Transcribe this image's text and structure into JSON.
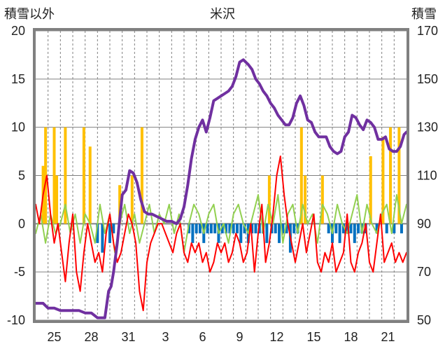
{
  "chart_data": {
    "type": "line",
    "title": "米沢",
    "left_axis_label": "積雪以外",
    "right_axis_label": "積雪",
    "left_ylim": [
      -10,
      20
    ],
    "left_yticks": [
      "20",
      "15",
      "10",
      "5",
      "0",
      "-5",
      "-10"
    ],
    "right_ylim": [
      50,
      170
    ],
    "right_yticks": [
      "170",
      "150",
      "130",
      "110",
      "90",
      "70",
      "50"
    ],
    "x_tick_labels": [
      "25",
      "28",
      "31",
      "3",
      "6",
      "9",
      "12",
      "15",
      "18",
      "21"
    ],
    "x_range_days": 30,
    "x_tick_offsets_days": [
      1.5,
      4.5,
      7.5,
      10.5,
      13.5,
      16.5,
      19.5,
      22.5,
      25.5,
      28.5
    ],
    "grid": {
      "horizontal": true,
      "vertical_dashed_daily": true
    },
    "colors": {
      "snow_depth": "#7030a0",
      "temperature": "#ff0000",
      "wind": "#92d050",
      "snowfall": "#ffc000",
      "snow_decrease": "#0070c0",
      "frame": "#808080",
      "grid": "#808080"
    },
    "series": [
      {
        "axis": "right",
        "color": "#7030a0",
        "x": [
          0,
          0.6,
          1,
          1.5,
          2,
          2.5,
          3,
          3.5,
          4,
          4.5,
          5,
          5.3,
          5.6,
          5.9,
          6.1,
          6.3,
          6.6,
          7,
          7.3,
          7.6,
          7.9,
          8.2,
          8.5,
          8.8,
          9.1,
          9.4,
          9.8,
          10.2,
          10.6,
          11,
          11.4,
          11.7,
          12,
          12.3,
          12.6,
          12.9,
          13.2,
          13.5,
          13.8,
          14.1,
          14.4,
          14.7,
          15,
          15.3,
          15.6,
          15.9,
          16.2,
          16.5,
          16.8,
          17,
          17.2,
          17.5,
          17.8,
          18.1,
          18.4,
          18.7,
          19,
          19.3,
          19.6,
          19.9,
          20.2,
          20.5,
          20.8,
          21.1,
          21.4,
          21.7,
          22,
          22.3,
          22.6,
          22.9,
          23.2,
          23.5,
          23.8,
          24.1,
          24.4,
          24.7,
          25,
          25.3,
          25.6,
          25.9,
          26.2,
          26.5,
          26.8,
          27.1,
          27.4,
          27.7,
          28,
          28.3,
          28.6,
          28.9,
          29.2,
          29.5,
          29.8,
          30
        ],
        "values": [
          57,
          57,
          55,
          55,
          54,
          54,
          54,
          54,
          53,
          53,
          51,
          51,
          51,
          62,
          64,
          70,
          82,
          102,
          104,
          112,
          111,
          107,
          100,
          95,
          94,
          94,
          93,
          92,
          91,
          91,
          90,
          92,
          97,
          106,
          117,
          125,
          130,
          133,
          128,
          134,
          141,
          142,
          143,
          144,
          145,
          147,
          151,
          157,
          158,
          157,
          156,
          154,
          150,
          148,
          145,
          143,
          140,
          138,
          135,
          133,
          131,
          131,
          134,
          140,
          143,
          139,
          133,
          132,
          128,
          126,
          126,
          126,
          122,
          120,
          119,
          120,
          126,
          128,
          135,
          134,
          131,
          129,
          133,
          132,
          130,
          125,
          125,
          126,
          121,
          120,
          120,
          122,
          127,
          128
        ]
      },
      {
        "axis": "left",
        "color": "#ff0000",
        "x": [
          0,
          0.3,
          0.6,
          0.9,
          1.2,
          1.5,
          1.8,
          2.1,
          2.4,
          2.7,
          3,
          3.3,
          3.6,
          3.9,
          4.2,
          4.5,
          4.8,
          5.1,
          5.4,
          5.7,
          6,
          6.3,
          6.6,
          6.9,
          7.2,
          7.5,
          7.8,
          8.1,
          8.4,
          8.7,
          9,
          9.3,
          9.6,
          9.9,
          10.2,
          10.5,
          10.8,
          11.1,
          11.4,
          11.7,
          12,
          12.3,
          12.6,
          12.9,
          13.2,
          13.5,
          13.8,
          14.1,
          14.4,
          14.7,
          15,
          15.3,
          15.6,
          15.9,
          16.2,
          16.5,
          16.8,
          17.1,
          17.4,
          17.7,
          18,
          18.3,
          18.6,
          18.9,
          19.2,
          19.5,
          19.8,
          20.1,
          20.4,
          20.7,
          21,
          21.3,
          21.6,
          21.9,
          22.2,
          22.5,
          22.8,
          23.1,
          23.4,
          23.7,
          24,
          24.3,
          24.6,
          24.9,
          25.2,
          25.5,
          25.8,
          26.1,
          26.4,
          26.7,
          27,
          27.3,
          27.6,
          27.9,
          28.2,
          28.5,
          28.8,
          29.1,
          29.4,
          29.7,
          30
        ],
        "values": [
          2,
          0,
          3,
          5,
          1,
          -2,
          0,
          -3,
          -6,
          -2,
          1,
          -5,
          -7,
          -3,
          0,
          -2,
          -4,
          -3,
          -5,
          -1,
          1,
          -2,
          -4,
          -3,
          -1,
          1,
          0,
          -2,
          -7,
          -9,
          -4,
          -2,
          -1,
          0,
          0,
          -1,
          -2,
          -3,
          -1,
          0,
          -3,
          -4,
          -2,
          -3,
          -2,
          -4,
          -3,
          -5,
          -4,
          -2,
          -3,
          -2,
          -4,
          -3,
          -1,
          -2,
          -4,
          -3,
          0,
          -5,
          -1,
          2,
          -4,
          -2,
          1,
          5,
          7,
          3,
          0,
          -2,
          -4,
          -2,
          0,
          -3,
          -1,
          1,
          -4,
          -5,
          -3,
          -4,
          -2,
          -5,
          -4,
          -3,
          1,
          -4,
          -5,
          -3,
          -2,
          0,
          -4,
          -5,
          -2,
          1,
          -4,
          -3,
          -2,
          -4,
          -3,
          -4,
          -3
        ]
      },
      {
        "axis": "left",
        "color": "#92d050",
        "x": [
          0,
          0.4,
          0.8,
          1.2,
          1.6,
          2,
          2.4,
          2.8,
          3.2,
          3.6,
          4,
          4.4,
          4.8,
          5.2,
          5.6,
          6,
          6.4,
          6.8,
          7.2,
          7.6,
          8,
          8.4,
          8.8,
          9.2,
          9.6,
          10,
          10.4,
          10.8,
          11.2,
          11.6,
          12,
          12.4,
          12.8,
          13.2,
          13.6,
          14,
          14.4,
          14.8,
          15.2,
          15.6,
          16,
          16.4,
          16.8,
          17.2,
          17.6,
          18,
          18.4,
          18.8,
          19.2,
          19.6,
          20,
          20.4,
          20.8,
          21.2,
          21.6,
          22,
          22.4,
          22.8,
          23.2,
          23.6,
          24,
          24.4,
          24.8,
          25.2,
          25.6,
          26,
          26.4,
          26.8,
          27.2,
          27.6,
          28,
          28.4,
          28.8,
          29.2,
          29.6,
          30
        ],
        "values": [
          -1,
          1,
          -2,
          1,
          -1,
          0,
          2,
          -1,
          1,
          -2,
          1,
          0,
          -2,
          2,
          -1,
          1,
          -3,
          0,
          2,
          -1,
          1,
          -2,
          0,
          2,
          -1,
          1,
          0,
          2,
          -1,
          1,
          -3,
          0,
          2,
          1,
          -1,
          1,
          2,
          -1,
          0,
          -2,
          1,
          2,
          0,
          -1,
          1,
          3,
          -1,
          2,
          0,
          3,
          -2,
          1,
          2,
          -1,
          2,
          0,
          1,
          -2,
          2,
          1,
          -1,
          2,
          0,
          -1,
          1,
          3,
          -1,
          2,
          0,
          -1,
          1,
          2,
          -1,
          3,
          0,
          2
        ]
      }
    ],
    "bars": [
      {
        "axis": "left",
        "color": "#ffc000",
        "x": [
          0.6,
          0.8,
          1.5,
          1.7,
          2.4,
          3.9,
          4.4,
          6.8,
          7.8,
          8.6,
          18.9,
          21.5,
          21.8,
          23.2,
          27.1,
          28.1,
          28.7,
          29.4
        ],
        "values": [
          6,
          10,
          10,
          5,
          10,
          10,
          8,
          4,
          5,
          10,
          5,
          10,
          5,
          5,
          7,
          9,
          10,
          10
        ]
      },
      {
        "axis": "left",
        "color": "#0070c0",
        "x": [
          5,
          5.4,
          6,
          6.3,
          12.4,
          12.7,
          13,
          13.3,
          13.6,
          13.9,
          14.2,
          14.5,
          14.8,
          15.1,
          15.4,
          15.7,
          16,
          16.3,
          16.6,
          16.9,
          17.2,
          17.5,
          17.8,
          18.1,
          18.4,
          18.7,
          19.1,
          19.4,
          19.7,
          20,
          20.3,
          20.6,
          20.9,
          21.2,
          23.7,
          24,
          24.3,
          24.6,
          24.9,
          25.2,
          25.5,
          25.8,
          26.1,
          26.4,
          26.7,
          27.6,
          28.4,
          29,
          29.6
        ],
        "values": [
          -2,
          -3,
          -2,
          -1,
          -1,
          -2,
          -1,
          -1,
          -2,
          -1,
          -1,
          -1,
          -2,
          -1,
          -1,
          -1,
          -1,
          -1,
          -2,
          -1,
          -2,
          -1,
          -1,
          -1,
          -1,
          -2,
          -1,
          -1,
          -2,
          -1,
          -1,
          -3,
          -1,
          -1,
          -1,
          -2,
          -1,
          -2,
          -1,
          -1,
          -1,
          -2,
          -1,
          -1,
          -1,
          -1,
          -1,
          -1,
          -1
        ]
      }
    ]
  }
}
